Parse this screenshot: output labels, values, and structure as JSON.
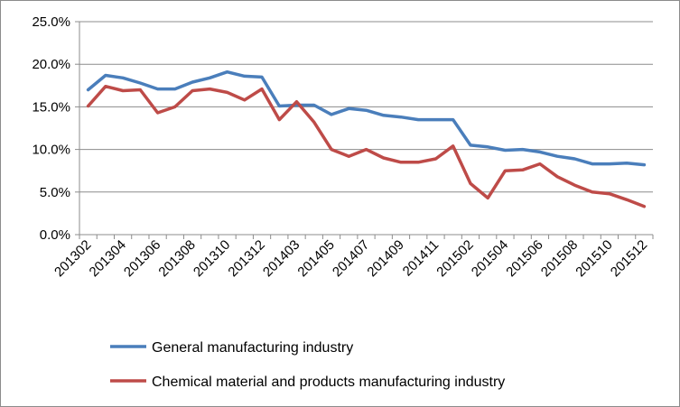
{
  "chart_data": {
    "type": "line",
    "title": "",
    "xlabel": "",
    "ylabel": "",
    "ylim": [
      0,
      25
    ],
    "yticks": [
      "0.0%",
      "5.0%",
      "10.0%",
      "15.0%",
      "20.0%",
      "25.0%"
    ],
    "ytick_values": [
      0,
      5,
      10,
      15,
      20,
      25
    ],
    "grid": true,
    "legend_position": "bottom",
    "x": [
      "201302",
      "201303",
      "201304",
      "201305",
      "201306",
      "201307",
      "201308",
      "201309",
      "201310",
      "201311",
      "201312",
      "201401",
      "201403",
      "201404",
      "201405",
      "201406",
      "201407",
      "201408",
      "201409",
      "201410",
      "201411",
      "201412",
      "201502",
      "201503",
      "201504",
      "201505",
      "201506",
      "201507",
      "201508",
      "201509",
      "201510",
      "201511",
      "201512"
    ],
    "xtick_labels": [
      "201302",
      "201304",
      "201306",
      "201308",
      "201310",
      "201312",
      "201403",
      "201405",
      "201407",
      "201409",
      "201411",
      "201502",
      "201504",
      "201506",
      "201508",
      "201510",
      "201512"
    ],
    "series": [
      {
        "name": "General manufacturing industry",
        "color": "#4a7ebb",
        "values": [
          17.0,
          18.7,
          18.4,
          17.8,
          17.1,
          17.1,
          17.9,
          18.4,
          19.1,
          18.6,
          18.5,
          15.1,
          15.2,
          15.2,
          14.1,
          14.8,
          14.6,
          14.0,
          13.8,
          13.5,
          13.5,
          13.5,
          10.5,
          10.3,
          9.9,
          10.0,
          9.7,
          9.2,
          8.9,
          8.3,
          8.3,
          8.4,
          8.2
        ]
      },
      {
        "name": "Chemical material and products manufacturing industry",
        "color": "#be4b48",
        "values": [
          15.1,
          17.4,
          16.9,
          17.0,
          14.3,
          15.0,
          16.9,
          17.1,
          16.7,
          15.8,
          17.1,
          13.5,
          15.6,
          13.2,
          10.0,
          9.2,
          10.0,
          9.0,
          8.5,
          8.5,
          8.9,
          10.4,
          6.0,
          4.3,
          7.5,
          7.6,
          8.3,
          6.8,
          5.8,
          5.0,
          4.8,
          4.1,
          3.3
        ]
      }
    ]
  }
}
